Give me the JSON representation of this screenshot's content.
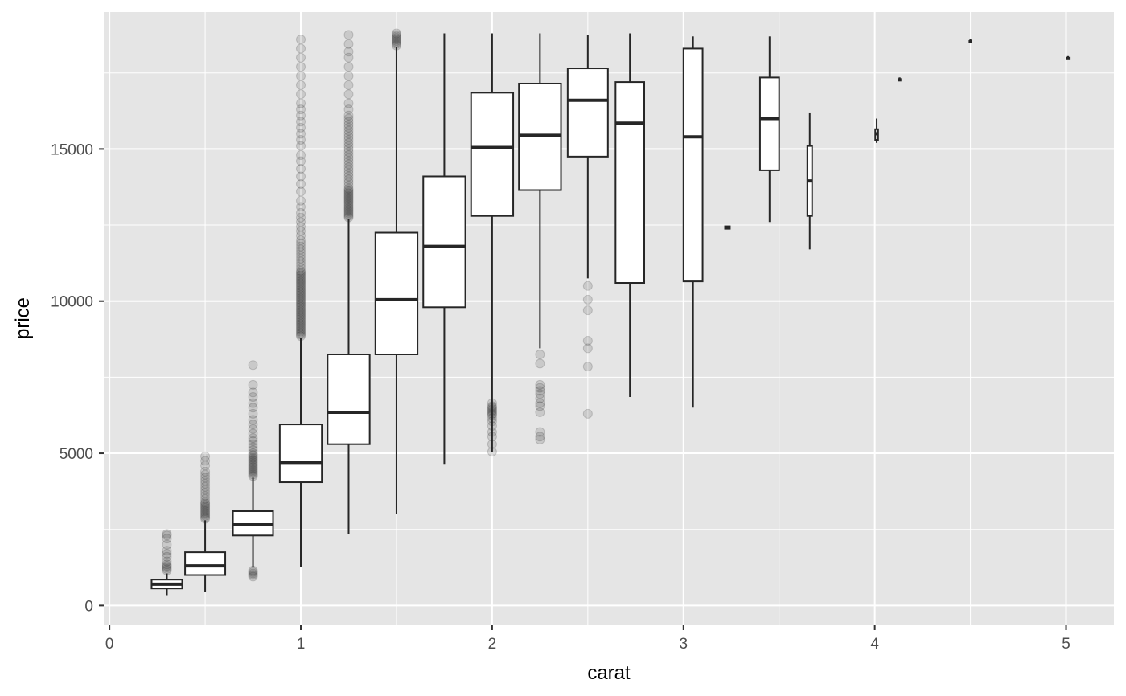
{
  "chart_data": {
    "type": "boxplot",
    "xlabel": "carat",
    "ylabel": "price",
    "xlim": [
      -0.03,
      5.25
    ],
    "ylim": [
      -650,
      19500
    ],
    "x_ticks": [
      0,
      1,
      2,
      3,
      4,
      5
    ],
    "x_tick_labels": [
      "0",
      "1",
      "2",
      "3",
      "4",
      "5"
    ],
    "y_ticks": [
      0,
      5000,
      10000,
      15000
    ],
    "y_tick_labels": [
      "0",
      "5000",
      "10000",
      "15000"
    ],
    "x_minor_ticks": [
      0.5,
      1.5,
      2.5,
      3.5,
      4.5
    ],
    "y_minor_ticks": [
      2500,
      7500,
      12500,
      17500
    ],
    "grid": true,
    "colors": {
      "panel": "#e5e5e5",
      "grid": "#ffffff",
      "box_fill": "#ffffff",
      "box_stroke": "#262626",
      "outlier": "#262626"
    },
    "outlier_alpha": 0.15,
    "boxes": [
      {
        "x": 0.3,
        "width": 0.16,
        "q1": 560,
        "median": 700,
        "q3": 850,
        "lower": 340,
        "upper": 1050,
        "outliers": [
          1150,
          1200,
          1250,
          1300,
          1350,
          1450,
          1600,
          1700,
          1800,
          2000,
          2200,
          2300,
          2350
        ]
      },
      {
        "x": 0.5,
        "width": 0.21,
        "q1": 1000,
        "median": 1300,
        "q3": 1750,
        "lower": 450,
        "upper": 2800,
        "outliers": [
          2850,
          2900,
          2950,
          3000,
          3050,
          3100,
          3150,
          3200,
          3250,
          3300,
          3350,
          3400,
          3500,
          3600,
          3700,
          3800,
          3900,
          4000,
          4100,
          4200,
          4300,
          4400,
          4600,
          4750,
          4900
        ]
      },
      {
        "x": 0.75,
        "width": 0.21,
        "q1": 2300,
        "median": 2650,
        "q3": 3100,
        "lower": 1250,
        "upper": 4200,
        "outliers": [
          950,
          1000,
          1050,
          1100,
          1150,
          4250,
          4300,
          4350,
          4400,
          4450,
          4500,
          4550,
          4600,
          4650,
          4700,
          4750,
          4800,
          4850,
          4900,
          4950,
          5000,
          5100,
          5200,
          5300,
          5400,
          5500,
          5650,
          5800,
          5950,
          6100,
          6300,
          6500,
          6650,
          6850,
          7000,
          7250,
          7900
        ]
      },
      {
        "x": 1.0,
        "width": 0.22,
        "q1": 4050,
        "median": 4700,
        "q3": 5950,
        "lower": 1250,
        "upper": 8800,
        "outliers": [
          8850,
          8900,
          8950,
          9000,
          9050,
          9100,
          9150,
          9200,
          9250,
          9300,
          9350,
          9400,
          9450,
          9500,
          9550,
          9600,
          9650,
          9700,
          9750,
          9800,
          9850,
          9900,
          9950,
          10000,
          10050,
          10100,
          10150,
          10200,
          10250,
          10300,
          10350,
          10400,
          10450,
          10500,
          10550,
          10600,
          10650,
          10700,
          10750,
          10800,
          10850,
          10900,
          10950,
          11000,
          11100,
          11200,
          11300,
          11400,
          11500,
          11600,
          11700,
          11800,
          11900,
          12000,
          12150,
          12300,
          12450,
          12600,
          12750,
          12900,
          13100,
          13300,
          13600,
          13850,
          14100,
          14350,
          14600,
          14800,
          15100,
          15300,
          15500,
          15700,
          15900,
          16100,
          16300,
          16500,
          16800,
          17100,
          17400,
          17700,
          18000,
          18300,
          18600
        ]
      },
      {
        "x": 1.25,
        "width": 0.22,
        "q1": 5300,
        "median": 6350,
        "q3": 8250,
        "lower": 2350,
        "upper": 12700,
        "outliers": [
          12750,
          12800,
          12850,
          12900,
          12950,
          13000,
          13050,
          13100,
          13150,
          13200,
          13250,
          13300,
          13350,
          13400,
          13450,
          13500,
          13550,
          13600,
          13650,
          13700,
          13800,
          13900,
          14000,
          14100,
          14200,
          14300,
          14400,
          14500,
          14600,
          14700,
          14800,
          14900,
          15000,
          15100,
          15200,
          15300,
          15400,
          15500,
          15600,
          15700,
          15800,
          15900,
          16000,
          16100,
          16300,
          16500,
          16800,
          17100,
          17400,
          17700,
          18000,
          18200,
          18450,
          18750
        ]
      },
      {
        "x": 1.5,
        "width": 0.22,
        "q1": 8250,
        "median": 10050,
        "q3": 12250,
        "lower": 3000,
        "upper": 18350,
        "outliers": [
          18400,
          18450,
          18500,
          18550,
          18600,
          18650,
          18700,
          18750,
          18800
        ]
      },
      {
        "x": 1.75,
        "width": 0.22,
        "q1": 9800,
        "median": 11800,
        "q3": 14100,
        "lower": 4650,
        "upper": 18800,
        "outliers": []
      },
      {
        "x": 2.0,
        "width": 0.22,
        "q1": 12800,
        "median": 15050,
        "q3": 16850,
        "lower": 5050,
        "upper": 18800,
        "outliers": [
          5050,
          5300,
          5550,
          5700,
          5900,
          6050,
          6150,
          6250,
          6300,
          6350,
          6400,
          6450,
          6500,
          6550,
          6650
        ]
      },
      {
        "x": 2.25,
        "width": 0.22,
        "q1": 13650,
        "median": 15450,
        "q3": 17150,
        "lower": 8450,
        "upper": 18800,
        "outliers": [
          5450,
          5550,
          5700,
          6350,
          6550,
          6650,
          6800,
          6950,
          7050,
          7150,
          7250,
          7950,
          8250
        ]
      },
      {
        "x": 2.5,
        "width": 0.21,
        "q1": 14750,
        "median": 16600,
        "q3": 17650,
        "lower": 10750,
        "upper": 18750,
        "outliers": [
          6300,
          7850,
          8450,
          8700,
          9700,
          10050,
          10500
        ]
      },
      {
        "x": 2.72,
        "width": 0.15,
        "q1": 10600,
        "median": 15850,
        "q3": 17200,
        "lower": 6850,
        "upper": 18800,
        "outliers": []
      },
      {
        "x": 3.05,
        "width": 0.1,
        "q1": 10650,
        "median": 15400,
        "q3": 18300,
        "lower": 6500,
        "upper": 18700,
        "outliers": []
      },
      {
        "x": 3.23,
        "width": 0.025,
        "q1": 12380,
        "median": 12420,
        "q3": 12460,
        "lower": 12380,
        "upper": 12460,
        "outliers": []
      },
      {
        "x": 3.45,
        "width": 0.1,
        "q1": 14300,
        "median": 16000,
        "q3": 17350,
        "lower": 12600,
        "upper": 18700,
        "outliers": []
      },
      {
        "x": 3.66,
        "width": 0.025,
        "q1": 12800,
        "median": 13950,
        "q3": 15100,
        "lower": 11700,
        "upper": 16200,
        "outliers": []
      },
      {
        "x": 4.01,
        "width": 0.015,
        "q1": 15300,
        "median": 15500,
        "q3": 15650,
        "lower": 15200,
        "upper": 16000,
        "outliers": []
      },
      {
        "x": 4.13,
        "width": 0.01,
        "q1": 17300,
        "median": 17300,
        "q3": 17300,
        "lower": 17300,
        "upper": 17300,
        "outliers": []
      },
      {
        "x": 4.5,
        "width": 0.01,
        "q1": 18550,
        "median": 18550,
        "q3": 18550,
        "lower": 18550,
        "upper": 18550,
        "outliers": []
      },
      {
        "x": 5.01,
        "width": 0.01,
        "q1": 18000,
        "median": 18000,
        "q3": 18000,
        "lower": 18000,
        "upper": 18000,
        "outliers": []
      }
    ]
  }
}
